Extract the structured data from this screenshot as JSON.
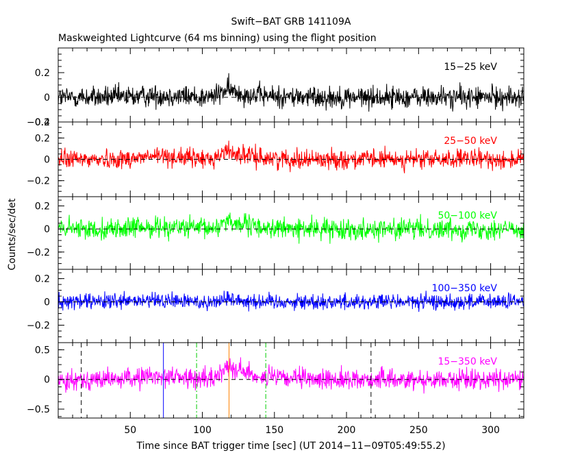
{
  "chart_data": {
    "type": "line",
    "title": "Swift−BAT GRB 141109A",
    "subtitle": "Maskweighted Lightcurve (64 ms binning) using the flight position",
    "xlabel": "Time since BAT trigger time [sec] (UT 2014−11−09T05:49:55.2)",
    "ylabel": "Counts/sec/det",
    "xlim": [
      0,
      323
    ],
    "xticks": [
      50,
      100,
      150,
      200,
      250,
      300
    ],
    "panels": [
      {
        "band": "15−25 keV",
        "color": "#000000",
        "ylim": [
          -0.2,
          0.4
        ],
        "yticks": [
          -0.2,
          0,
          0.2
        ],
        "ytick_labels": [
          "−0.2",
          "0",
          "0.2"
        ],
        "top_label": "0.4",
        "noise": 0.045,
        "peak": {
          "t": 118,
          "amp": 0.06,
          "width": 10
        },
        "bump": {
          "t": 72,
          "amp": 0.015,
          "width": 14
        }
      },
      {
        "band": "25−50 keV",
        "color": "#ff0000",
        "ylim": [
          -0.35,
          0.35
        ],
        "yticks": [
          -0.2,
          0,
          0.2
        ],
        "ytick_labels": [
          "−0.2",
          "0",
          "0.2"
        ],
        "noise": 0.045,
        "peak": {
          "t": 118,
          "amp": 0.08,
          "width": 9
        },
        "bump": {
          "t": 72,
          "amp": 0.03,
          "width": 14
        }
      },
      {
        "band": "50−100 keV",
        "color": "#00ff00",
        "ylim": [
          -0.35,
          0.28
        ],
        "yticks": [
          -0.2,
          0,
          0.2
        ],
        "ytick_labels": [
          "−0.2",
          "0",
          "0.2"
        ],
        "noise": 0.045,
        "peak": {
          "t": 118,
          "amp": 0.08,
          "width": 8
        },
        "bump": {
          "t": 72,
          "amp": 0.02,
          "width": 14
        }
      },
      {
        "band": "100−350 keV",
        "color": "#0000ff",
        "ylim": [
          -0.35,
          0.28
        ],
        "yticks": [
          -0.2,
          0,
          0.2
        ],
        "ytick_labels": [
          "−0.2",
          "0",
          "0.2"
        ],
        "noise": 0.035,
        "peak": {
          "t": 118,
          "amp": 0.03,
          "width": 8
        },
        "bump": {
          "t": 72,
          "amp": 0.01,
          "width": 14
        }
      },
      {
        "band": "15−350 keV",
        "color": "#ff00ff",
        "ylim": [
          -0.65,
          0.62
        ],
        "yticks": [
          -0.5,
          0,
          0.5
        ],
        "ytick_labels": [
          "−0.5",
          "0",
          "0.5"
        ],
        "noise": 0.085,
        "peak": {
          "t": 119,
          "amp": 0.25,
          "width": 9
        },
        "bump": {
          "t": 72,
          "amp": 0.06,
          "width": 14
        },
        "markers": [
          {
            "t": 16,
            "color": "#000000",
            "style": "dashed"
          },
          {
            "t": 73,
            "color": "#0000ff",
            "style": "solid"
          },
          {
            "t": 96,
            "color": "#00cc00",
            "style": "dashdot"
          },
          {
            "t": 118.5,
            "color": "#ff8000",
            "style": "solid"
          },
          {
            "t": 144,
            "color": "#00cc00",
            "style": "dashdot"
          },
          {
            "t": 217,
            "color": "#000000",
            "style": "dashed"
          }
        ]
      }
    ],
    "grid": false,
    "zero_line": "dashed"
  }
}
